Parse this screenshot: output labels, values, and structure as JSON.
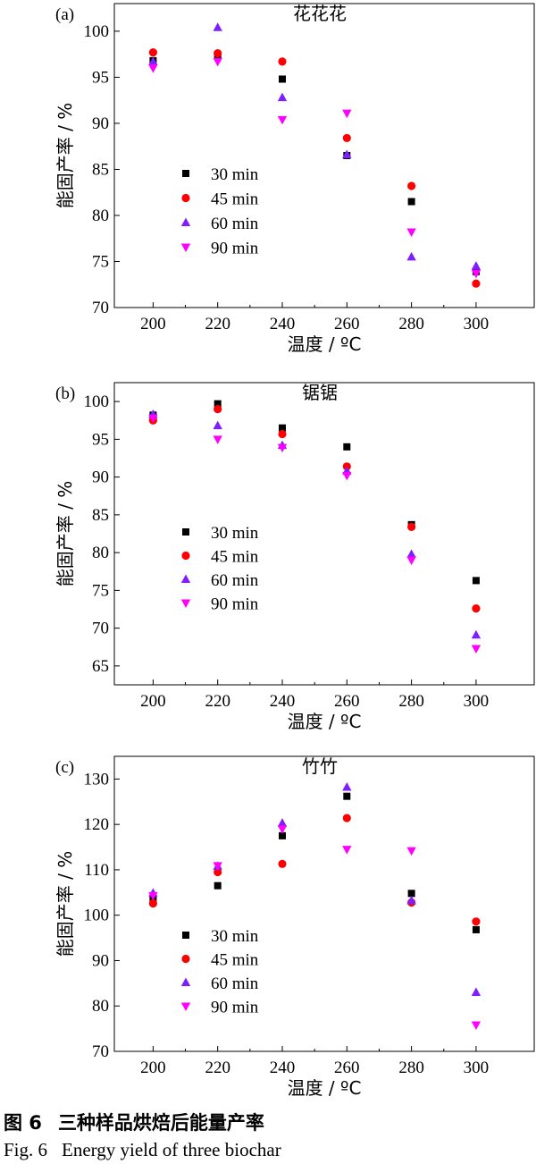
{
  "caption": {
    "cn_fig": "图 6",
    "cn_text": "三种样品烘焙后能量产率",
    "en_fig": "Fig. 6",
    "en_text": "Energy yield of three biochar"
  },
  "colors": {
    "30 min": "#000000",
    "45 min": "#ff0000",
    "60 min": "#7f1fff",
    "90 min": "#ff00ff"
  },
  "chart_data": [
    {
      "type": "scatter",
      "panel_label": "(a)",
      "title": "花花花",
      "xlabel": "温度 / ºC",
      "ylabel": "能固产率 / %",
      "xlim": [
        188,
        318
      ],
      "ylim": [
        70,
        103
      ],
      "x_ticks": [
        200,
        220,
        240,
        260,
        280,
        300
      ],
      "y_ticks": [
        70,
        75,
        80,
        85,
        90,
        95,
        100
      ],
      "legend_position": "center-left",
      "x": [
        200,
        220,
        240,
        260,
        280,
        300
      ],
      "series": [
        {
          "name": "30 min",
          "marker": "square",
          "values": [
            96.8,
            97.3,
            94.8,
            86.5,
            81.5,
            73.9
          ]
        },
        {
          "name": "45 min",
          "marker": "circle",
          "values": [
            97.7,
            97.6,
            96.7,
            88.4,
            83.2,
            72.6
          ]
        },
        {
          "name": "60 min",
          "marker": "triangle-up",
          "values": [
            96.7,
            100.4,
            92.8,
            86.6,
            75.5,
            74.5
          ]
        },
        {
          "name": "90 min",
          "marker": "triangle-down",
          "values": [
            96.0,
            96.7,
            90.4,
            91.1,
            78.2,
            73.7
          ]
        }
      ]
    },
    {
      "type": "scatter",
      "panel_label": "(b)",
      "title": "锯锯",
      "xlabel": "温度 / ºC",
      "ylabel": "能固产率 / %",
      "xlim": [
        188,
        318
      ],
      "ylim": [
        62.5,
        102.5
      ],
      "x_ticks": [
        200,
        220,
        240,
        260,
        280,
        300
      ],
      "y_ticks": [
        65,
        70,
        75,
        80,
        85,
        90,
        95,
        100
      ],
      "legend_position": "center-left",
      "x": [
        200,
        220,
        240,
        260,
        280,
        300
      ],
      "series": [
        {
          "name": "30 min",
          "marker": "square",
          "values": [
            98.2,
            99.7,
            96.5,
            94.0,
            83.7,
            76.3
          ]
        },
        {
          "name": "45 min",
          "marker": "circle",
          "values": [
            97.5,
            99.0,
            95.7,
            91.4,
            83.4,
            72.6
          ]
        },
        {
          "name": "60 min",
          "marker": "triangle-up",
          "values": [
            98.3,
            96.8,
            94.2,
            90.8,
            79.8,
            69.1
          ]
        },
        {
          "name": "90 min",
          "marker": "triangle-down",
          "values": [
            97.8,
            95.0,
            93.9,
            90.2,
            79.0,
            67.3
          ]
        }
      ]
    },
    {
      "type": "scatter",
      "panel_label": "(c)",
      "title": "竹竹",
      "xlabel": "温度 / ºC",
      "ylabel": "能固产率 / %",
      "xlim": [
        188,
        318
      ],
      "ylim": [
        70,
        135
      ],
      "x_ticks": [
        200,
        220,
        240,
        260,
        280,
        300
      ],
      "y_ticks": [
        70,
        80,
        90,
        100,
        110,
        120,
        130
      ],
      "legend_position": "center-left",
      "x": [
        200,
        220,
        240,
        260,
        280,
        300
      ],
      "series": [
        {
          "name": "30 min",
          "marker": "square",
          "values": [
            103.7,
            106.5,
            117.5,
            126.2,
            104.8,
            96.8
          ]
        },
        {
          "name": "45 min",
          "marker": "circle",
          "values": [
            102.6,
            109.5,
            111.3,
            121.4,
            102.8,
            98.6
          ]
        },
        {
          "name": "60 min",
          "marker": "triangle-up",
          "values": [
            104.9,
            110.8,
            120.3,
            128.2,
            103.2,
            83.0
          ]
        },
        {
          "name": "90 min",
          "marker": "triangle-down",
          "values": [
            104.3,
            110.9,
            119.0,
            114.5,
            114.2,
            75.8
          ]
        }
      ]
    }
  ]
}
